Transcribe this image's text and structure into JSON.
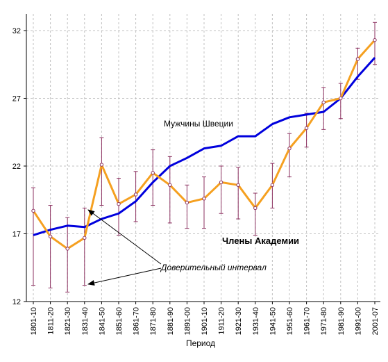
{
  "chart_data": {
    "type": "line",
    "title": "",
    "xlabel": "Период",
    "ylabel": "",
    "ylim": [
      12,
      33
    ],
    "yticks": [
      12,
      17,
      22,
      27,
      32
    ],
    "grid": true,
    "categories": [
      "1801-10",
      "1811-20",
      "1821-30",
      "1831-40",
      "1841-50",
      "1851-60",
      "1861-70",
      "1871-80",
      "1881-90",
      "1891-00",
      "1901-10",
      "1911-20",
      "1921-30",
      "1931-40",
      "1941-50",
      "1951-60",
      "1961-70",
      "1971-80",
      "1981-90",
      "1991-00",
      "2001-07"
    ],
    "series": [
      {
        "name": "Мужчины Швеции",
        "color": "#0000dd",
        "values": [
          16.9,
          17.3,
          17.6,
          17.5,
          18.1,
          18.5,
          19.4,
          20.8,
          22.0,
          22.6,
          23.3,
          23.5,
          24.2,
          24.2,
          25.1,
          25.6,
          25.8,
          26.0,
          27.0,
          28.6,
          30.0
        ]
      },
      {
        "name": "Члены Академии",
        "color": "#f5a020",
        "marker_color": "#8b2f5f",
        "values": [
          18.7,
          16.8,
          15.9,
          16.7,
          22.1,
          19.2,
          19.9,
          21.5,
          20.6,
          19.3,
          19.6,
          20.8,
          20.6,
          18.9,
          20.6,
          23.3,
          24.8,
          26.7,
          27.0,
          29.9,
          31.3
        ],
        "error_low": [
          13.2,
          13.0,
          12.7,
          13.2,
          19.1,
          16.9,
          17.9,
          19.1,
          17.8,
          17.4,
          17.4,
          18.5,
          18.1,
          16.9,
          18.9,
          21.2,
          23.4,
          24.7,
          25.5,
          28.4,
          29.5
        ],
        "error_high": [
          20.4,
          19.1,
          18.2,
          18.9,
          24.1,
          21.1,
          21.6,
          23.2,
          22.7,
          20.6,
          21.2,
          22.0,
          21.9,
          20.0,
          22.2,
          24.4,
          25.9,
          27.8,
          28.1,
          30.7,
          32.6
        ]
      }
    ],
    "annotations": {
      "men_label": "Мужчины Швеции",
      "members_label": "Члены Академии",
      "ci_label": "Доверительный интервал"
    }
  }
}
